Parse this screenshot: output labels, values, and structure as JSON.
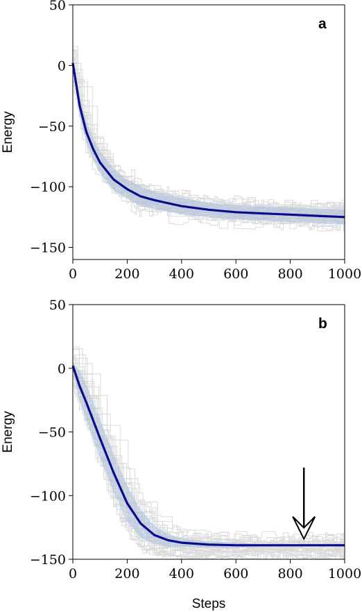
{
  "chart_data": [
    {
      "type": "line",
      "panel_label": "a",
      "xlabel": "",
      "ylabel": "Energy",
      "xlim": [
        0,
        1000
      ],
      "ylim": [
        -160,
        50
      ],
      "xticks": [
        0,
        200,
        400,
        600,
        800,
        1000
      ],
      "xtick_labels": [
        "0",
        "200",
        "400",
        "600",
        "800",
        "1000"
      ],
      "yticks": [
        50,
        0,
        -50,
        -100,
        -150
      ],
      "ytick_labels": [
        "50",
        "0",
        "−50",
        "−100",
        "−150"
      ],
      "grid": false,
      "colors": {
        "mean": "#0a0a8c",
        "band": "#a9bfdb",
        "runs": "#d9d9d9"
      },
      "series": [
        {
          "role": "mean",
          "x": [
            0,
            25,
            50,
            75,
            100,
            150,
            200,
            250,
            300,
            400,
            500,
            600,
            700,
            800,
            900,
            1000
          ],
          "values": [
            2,
            -33,
            -55,
            -69,
            -80,
            -94,
            -102,
            -108,
            -111,
            -116,
            -119,
            -121,
            -122,
            -123,
            -124,
            -125
          ]
        },
        {
          "role": "band",
          "x": [
            0,
            25,
            50,
            75,
            100,
            150,
            200,
            250,
            300,
            400,
            500,
            600,
            700,
            800,
            900,
            1000
          ],
          "upper": [
            5,
            -25,
            -46,
            -60,
            -71,
            -85,
            -94,
            -100,
            -104,
            -109,
            -113,
            -115,
            -116,
            -117,
            -118,
            -119
          ],
          "lower": [
            -1,
            -41,
            -64,
            -78,
            -89,
            -103,
            -110,
            -116,
            -118,
            -123,
            -125,
            -127,
            -128,
            -129,
            -130,
            -131
          ]
        }
      ],
      "n_runs": 30
    },
    {
      "type": "line",
      "panel_label": "b",
      "xlabel": "Steps",
      "ylabel": "Energy",
      "xlim": [
        0,
        1000
      ],
      "ylim": [
        -150,
        50
      ],
      "xticks": [
        0,
        200,
        400,
        600,
        800,
        1000
      ],
      "xtick_labels": [
        "0",
        "200",
        "400",
        "600",
        "800",
        "1000"
      ],
      "yticks": [
        50,
        0,
        -50,
        -100,
        -150
      ],
      "ytick_labels": [
        "50",
        "0",
        "−50",
        "−100",
        "−150"
      ],
      "grid": false,
      "colors": {
        "mean": "#0a0a8c",
        "band": "#a9bfdb",
        "runs": "#d9d9d9"
      },
      "series": [
        {
          "role": "mean",
          "x": [
            0,
            25,
            50,
            100,
            150,
            200,
            250,
            300,
            350,
            400,
            500,
            600,
            700,
            800,
            900,
            1000
          ],
          "values": [
            2,
            -14,
            -27,
            -55,
            -82,
            -106,
            -122,
            -131,
            -135,
            -137,
            -138.5,
            -139,
            -139,
            -139,
            -139,
            -139
          ]
        },
        {
          "role": "band",
          "x": [
            0,
            25,
            50,
            100,
            150,
            200,
            250,
            300,
            350,
            400,
            500,
            600,
            700,
            800,
            900,
            1000
          ],
          "upper": [
            5,
            -2,
            -13,
            -40,
            -67,
            -92,
            -111,
            -124,
            -130,
            -134,
            -136,
            -137,
            -138,
            -138,
            -138,
            -138
          ],
          "lower": [
            -1,
            -26,
            -41,
            -70,
            -97,
            -120,
            -133,
            -138,
            -140,
            -140,
            -141,
            -141,
            -140,
            -140,
            -140,
            -140
          ]
        }
      ],
      "n_runs": 30,
      "annotation": {
        "type": "arrow",
        "x": 850,
        "y_from": -78,
        "y_to": -134
      }
    }
  ]
}
